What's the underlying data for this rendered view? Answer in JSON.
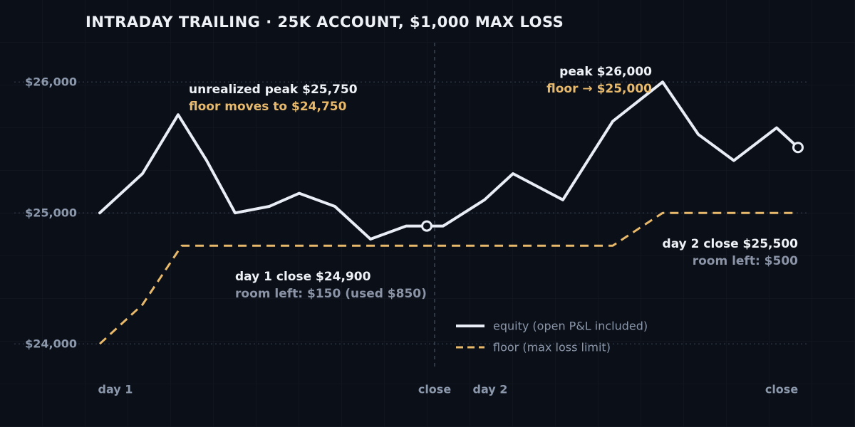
{
  "chart_data": {
    "type": "line",
    "title": "INTRADAY TRAILING · 25K ACCOUNT, $1,000 MAX LOSS",
    "xlim": [
      0,
      98
    ],
    "xticks": [
      {
        "value": 2.2,
        "label": "day 1"
      },
      {
        "value": 47,
        "label": "close"
      },
      {
        "value": 54.8,
        "label": "day 2"
      },
      {
        "value": 95.7,
        "label": "close"
      }
    ],
    "day_boundary": 47,
    "ylim": [
      23800,
      26300
    ],
    "yticks": [
      {
        "value": 24000,
        "label": "$24,000"
      },
      {
        "value": 25000,
        "label": "$25,000"
      },
      {
        "value": 26000,
        "label": "$26,000"
      }
    ],
    "grid": true,
    "series": [
      {
        "name": "equity (open P&L included)",
        "color": "#e9edf5",
        "dashed": false,
        "x": [
          0,
          6,
          11,
          15,
          19,
          23.8,
          28,
          33,
          38,
          43,
          45.9,
          48.2,
          54,
          58,
          65,
          72,
          79,
          84,
          89,
          95,
          98
        ],
        "values": [
          25000,
          25300,
          25750,
          25400,
          25000,
          25050,
          25150,
          25050,
          24800,
          24900,
          24900,
          24900,
          25100,
          25300,
          25100,
          25700,
          26000,
          25600,
          25400,
          25650,
          25500
        ],
        "markers": [
          10,
          20
        ]
      },
      {
        "name": "floor (max loss limit)",
        "color": "#e8b96a",
        "dashed": true,
        "x": [
          0,
          6,
          11.5,
          72,
          79,
          98
        ],
        "values": [
          24000,
          24300,
          24750,
          24750,
          25000,
          25000
        ]
      }
    ],
    "annotations": {
      "peak1": "unrealized peak $25,750",
      "floor1": "floor moves to $24,750",
      "peak2": "peak $26,000",
      "floor2": "floor → $25,000",
      "close1": "day 1 close $24,900",
      "room1": "room left: $150 (used $850)",
      "close2": "day 2 close $25,500",
      "room2": "room left: $500"
    }
  }
}
